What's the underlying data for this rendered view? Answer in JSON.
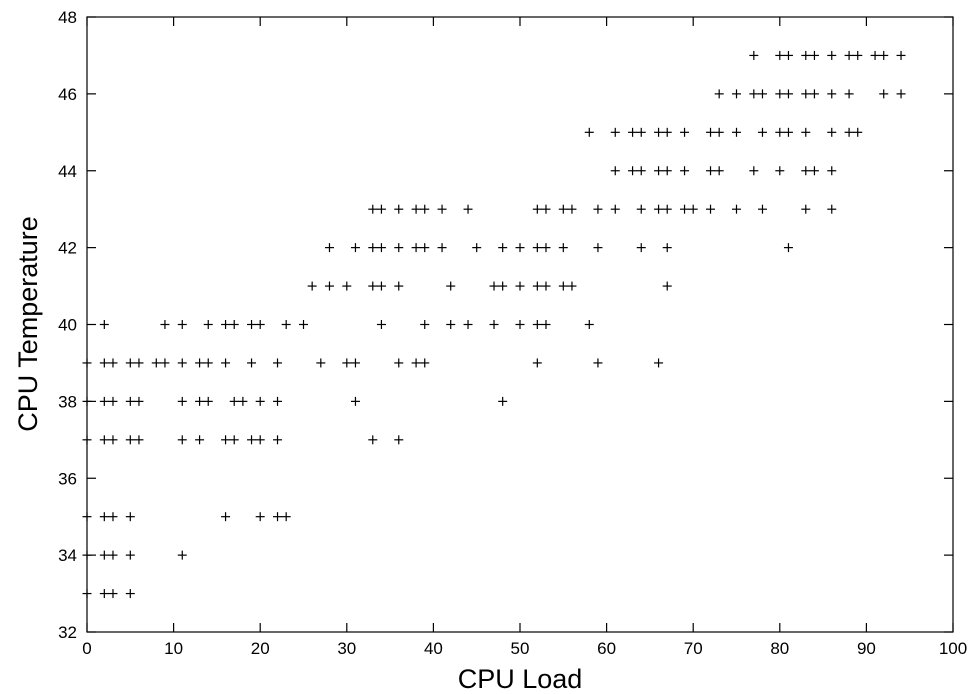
{
  "chart_data": {
    "type": "scatter",
    "title": "",
    "xlabel": "CPU Load",
    "ylabel": "CPU Temperature",
    "xlim": [
      0,
      100
    ],
    "ylim": [
      32,
      48
    ],
    "xticks": [
      0,
      10,
      20,
      30,
      40,
      50,
      60,
      70,
      80,
      90,
      100
    ],
    "yticks": [
      32,
      34,
      36,
      38,
      40,
      42,
      44,
      46,
      48
    ],
    "grid": false,
    "legend": "none",
    "marker": "plus",
    "color": "#000000",
    "points": [
      [
        0,
        33
      ],
      [
        2,
        33
      ],
      [
        3,
        33
      ],
      [
        5,
        33
      ],
      [
        0,
        34
      ],
      [
        2,
        34
      ],
      [
        3,
        34
      ],
      [
        5,
        34
      ],
      [
        11,
        34
      ],
      [
        0,
        35
      ],
      [
        2,
        35
      ],
      [
        3,
        35
      ],
      [
        5,
        35
      ],
      [
        16,
        35
      ],
      [
        20,
        35
      ],
      [
        22,
        35
      ],
      [
        23,
        35
      ],
      [
        0,
        37
      ],
      [
        2,
        37
      ],
      [
        3,
        37
      ],
      [
        5,
        37
      ],
      [
        6,
        37
      ],
      [
        11,
        37
      ],
      [
        13,
        37
      ],
      [
        16,
        37
      ],
      [
        17,
        37
      ],
      [
        19,
        37
      ],
      [
        20,
        37
      ],
      [
        22,
        37
      ],
      [
        33,
        37
      ],
      [
        36,
        37
      ],
      [
        0,
        38
      ],
      [
        2,
        38
      ],
      [
        3,
        38
      ],
      [
        5,
        38
      ],
      [
        6,
        38
      ],
      [
        11,
        38
      ],
      [
        13,
        38
      ],
      [
        14,
        38
      ],
      [
        17,
        38
      ],
      [
        18,
        38
      ],
      [
        20,
        38
      ],
      [
        22,
        38
      ],
      [
        31,
        38
      ],
      [
        48,
        38
      ],
      [
        0,
        39
      ],
      [
        2,
        39
      ],
      [
        3,
        39
      ],
      [
        5,
        39
      ],
      [
        6,
        39
      ],
      [
        8,
        39
      ],
      [
        9,
        39
      ],
      [
        11,
        39
      ],
      [
        13,
        39
      ],
      [
        14,
        39
      ],
      [
        16,
        39
      ],
      [
        19,
        39
      ],
      [
        22,
        39
      ],
      [
        27,
        39
      ],
      [
        30,
        39
      ],
      [
        31,
        39
      ],
      [
        36,
        39
      ],
      [
        38,
        39
      ],
      [
        39,
        39
      ],
      [
        52,
        39
      ],
      [
        59,
        39
      ],
      [
        66,
        39
      ],
      [
        2,
        40
      ],
      [
        9,
        40
      ],
      [
        11,
        40
      ],
      [
        14,
        40
      ],
      [
        16,
        40
      ],
      [
        17,
        40
      ],
      [
        19,
        40
      ],
      [
        20,
        40
      ],
      [
        23,
        40
      ],
      [
        25,
        40
      ],
      [
        34,
        40
      ],
      [
        39,
        40
      ],
      [
        42,
        40
      ],
      [
        44,
        40
      ],
      [
        47,
        40
      ],
      [
        50,
        40
      ],
      [
        52,
        40
      ],
      [
        53,
        40
      ],
      [
        58,
        40
      ],
      [
        26,
        41
      ],
      [
        28,
        41
      ],
      [
        30,
        41
      ],
      [
        33,
        41
      ],
      [
        34,
        41
      ],
      [
        36,
        41
      ],
      [
        42,
        41
      ],
      [
        47,
        41
      ],
      [
        48,
        41
      ],
      [
        50,
        41
      ],
      [
        52,
        41
      ],
      [
        53,
        41
      ],
      [
        55,
        41
      ],
      [
        56,
        41
      ],
      [
        67,
        41
      ],
      [
        28,
        42
      ],
      [
        31,
        42
      ],
      [
        33,
        42
      ],
      [
        34,
        42
      ],
      [
        36,
        42
      ],
      [
        38,
        42
      ],
      [
        39,
        42
      ],
      [
        41,
        42
      ],
      [
        45,
        42
      ],
      [
        48,
        42
      ],
      [
        50,
        42
      ],
      [
        52,
        42
      ],
      [
        53,
        42
      ],
      [
        55,
        42
      ],
      [
        59,
        42
      ],
      [
        64,
        42
      ],
      [
        67,
        42
      ],
      [
        81,
        42
      ],
      [
        33,
        43
      ],
      [
        34,
        43
      ],
      [
        36,
        43
      ],
      [
        38,
        43
      ],
      [
        39,
        43
      ],
      [
        41,
        43
      ],
      [
        44,
        43
      ],
      [
        52,
        43
      ],
      [
        53,
        43
      ],
      [
        55,
        43
      ],
      [
        56,
        43
      ],
      [
        59,
        43
      ],
      [
        61,
        43
      ],
      [
        64,
        43
      ],
      [
        66,
        43
      ],
      [
        67,
        43
      ],
      [
        69,
        43
      ],
      [
        70,
        43
      ],
      [
        72,
        43
      ],
      [
        75,
        43
      ],
      [
        78,
        43
      ],
      [
        83,
        43
      ],
      [
        86,
        43
      ],
      [
        61,
        44
      ],
      [
        63,
        44
      ],
      [
        64,
        44
      ],
      [
        66,
        44
      ],
      [
        67,
        44
      ],
      [
        69,
        44
      ],
      [
        72,
        44
      ],
      [
        73,
        44
      ],
      [
        77,
        44
      ],
      [
        80,
        44
      ],
      [
        83,
        44
      ],
      [
        84,
        44
      ],
      [
        86,
        44
      ],
      [
        58,
        45
      ],
      [
        61,
        45
      ],
      [
        63,
        45
      ],
      [
        64,
        45
      ],
      [
        66,
        45
      ],
      [
        67,
        45
      ],
      [
        69,
        45
      ],
      [
        72,
        45
      ],
      [
        73,
        45
      ],
      [
        75,
        45
      ],
      [
        78,
        45
      ],
      [
        80,
        45
      ],
      [
        81,
        45
      ],
      [
        83,
        45
      ],
      [
        86,
        45
      ],
      [
        88,
        45
      ],
      [
        89,
        45
      ],
      [
        73,
        46
      ],
      [
        75,
        46
      ],
      [
        77,
        46
      ],
      [
        78,
        46
      ],
      [
        80,
        46
      ],
      [
        81,
        46
      ],
      [
        83,
        46
      ],
      [
        84,
        46
      ],
      [
        86,
        46
      ],
      [
        88,
        46
      ],
      [
        92,
        46
      ],
      [
        94,
        46
      ],
      [
        77,
        47
      ],
      [
        80,
        47
      ],
      [
        81,
        47
      ],
      [
        83,
        47
      ],
      [
        84,
        47
      ],
      [
        86,
        47
      ],
      [
        88,
        47
      ],
      [
        89,
        47
      ],
      [
        91,
        47
      ],
      [
        92,
        47
      ],
      [
        94,
        47
      ]
    ]
  }
}
